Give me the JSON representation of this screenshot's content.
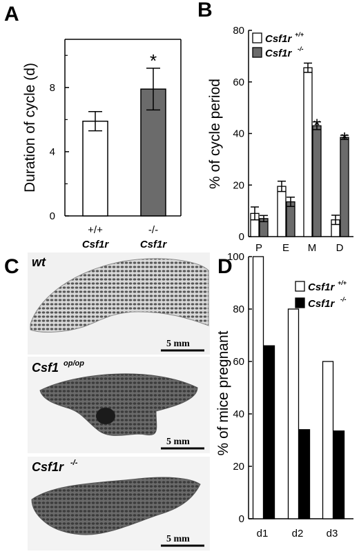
{
  "panels": {
    "A": {
      "label": "A"
    },
    "B": {
      "label": "B"
    },
    "C": {
      "label": "C"
    },
    "D": {
      "label": "D"
    }
  },
  "micrographs": [
    {
      "label": "wt",
      "label_sup": "",
      "scale": "5 mm"
    },
    {
      "label": "Csf1",
      "label_sup": "op/op",
      "scale": "5 mm"
    },
    {
      "label": "Csf1r",
      "label_sup": "-/-",
      "scale": "5 mm"
    }
  ],
  "colors": {
    "wt": "#ffffff",
    "ko_grey": "#6b6b6b",
    "ko_black": "#000000",
    "axis": "#000000"
  },
  "chart_data": [
    {
      "panel": "A",
      "type": "bar",
      "categories": [
        {
          "line1": "+/+",
          "line2": "Csf1r"
        },
        {
          "line1": "-/-",
          "line2": "Csf1r"
        }
      ],
      "values": [
        5.9,
        7.9
      ],
      "errors": [
        0.6,
        1.3
      ],
      "significance": [
        "",
        "*"
      ],
      "ylabel": "Duration of cycle (d)",
      "ylim": [
        0,
        11
      ],
      "yticks": [
        0,
        4,
        8
      ],
      "yminor": [
        2,
        6,
        10
      ],
      "grid": false
    },
    {
      "panel": "B",
      "type": "bar",
      "categories": [
        "P",
        "E",
        "M",
        "D"
      ],
      "series": [
        {
          "name": "Csf1r",
          "name_sup": "+/+",
          "color": "#ffffff",
          "values": [
            9,
            19.5,
            65.5,
            6.5
          ],
          "errors": [
            2.5,
            2,
            1.8,
            1.8
          ],
          "significance": [
            "",
            "",
            "",
            ""
          ]
        },
        {
          "name": "Csf1r",
          "name_sup": "-/-",
          "color": "#6b6b6b",
          "values": [
            7,
            13.5,
            43,
            38.5
          ],
          "errors": [
            1.2,
            1.8,
            1.5,
            0.8
          ],
          "significance": [
            "",
            "",
            "*",
            "*"
          ]
        }
      ],
      "ylabel": "% of cycle period",
      "ylim": [
        0,
        80
      ],
      "yticks": [
        0,
        20,
        40,
        60,
        80
      ],
      "legend": "top-right",
      "grid": false
    },
    {
      "panel": "D",
      "type": "bar",
      "categories": [
        "d1",
        "d2",
        "d3"
      ],
      "series": [
        {
          "name": "Csf1r",
          "name_sup": "+/+",
          "color": "#ffffff",
          "values": [
            100,
            80,
            60
          ]
        },
        {
          "name": "Csf1r",
          "name_sup": "-/-",
          "color": "#000000",
          "values": [
            66,
            34,
            33.5
          ]
        }
      ],
      "ylabel": "% of mice pregnant",
      "ylim": [
        0,
        100
      ],
      "yticks": [
        0,
        20,
        40,
        60,
        80,
        100
      ],
      "legend": "top-right",
      "grid": false
    }
  ]
}
